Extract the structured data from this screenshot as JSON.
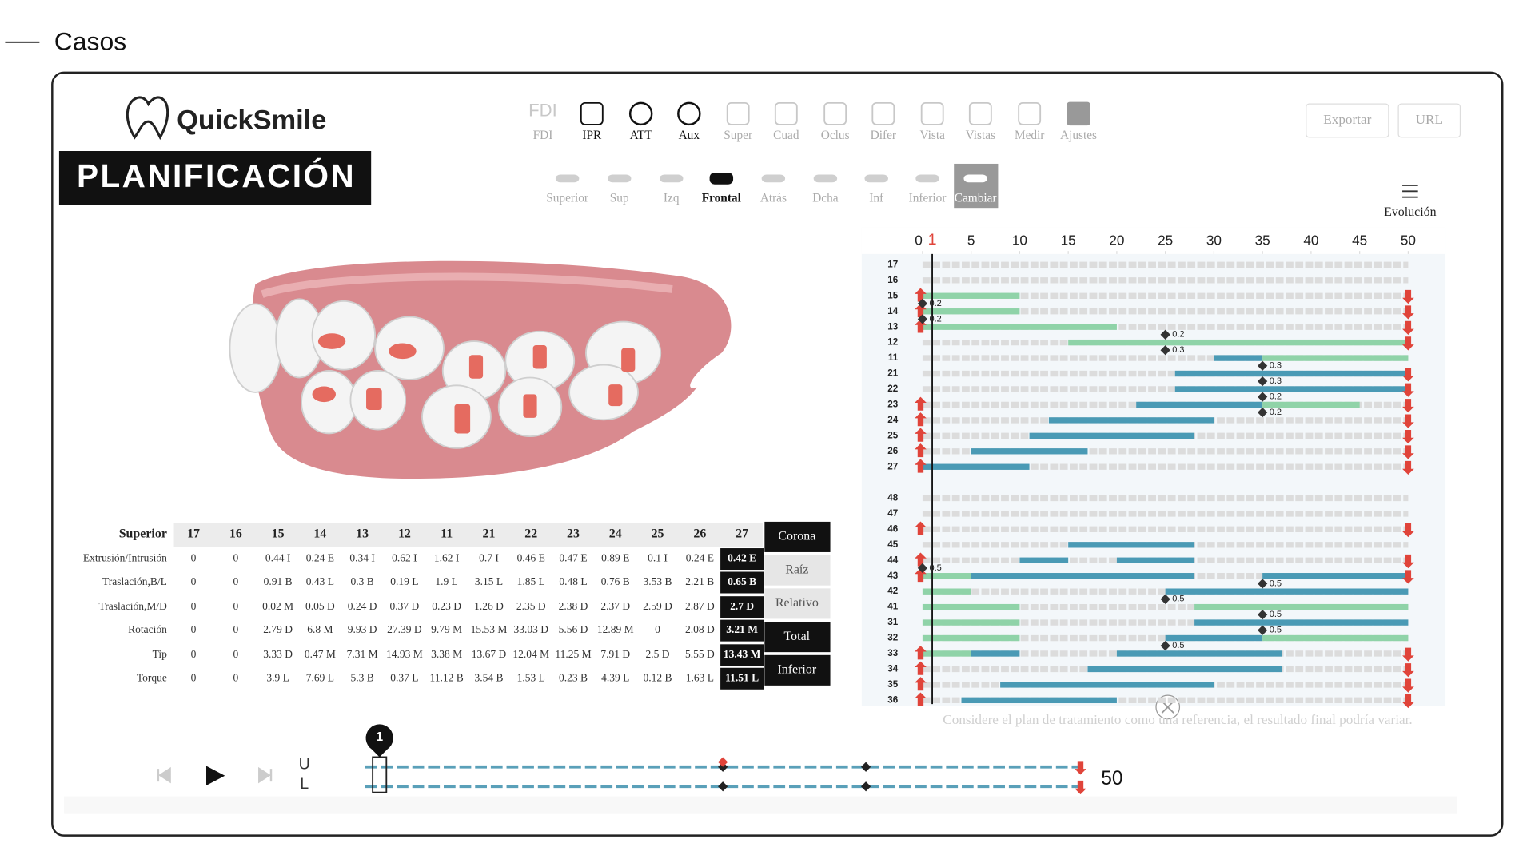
{
  "header": {
    "title": "Casos"
  },
  "app": {
    "logo": "QuickSmile",
    "section": "PLANIFICACIÓN",
    "tools": [
      "FDI",
      "IPR",
      "ATT",
      "Aux",
      "Super",
      "Cuad",
      "Oclus",
      "Difer",
      "Vista",
      "Vistas",
      "Medir",
      "Ajustes"
    ],
    "active_tools": [
      1,
      2,
      3
    ],
    "views": [
      "Superior",
      "Sup",
      "Izq",
      "Frontal",
      "Atrás",
      "Dcha",
      "Inf",
      "Inferior",
      "Cambiar"
    ],
    "active_view": 3,
    "highlight_view": 8,
    "actions": [
      "Exportar",
      "URL"
    ],
    "evolution": "Evolución"
  },
  "table": {
    "corner": "Superior",
    "columns": [
      "17",
      "16",
      "15",
      "14",
      "13",
      "12",
      "11",
      "21",
      "22",
      "23",
      "24",
      "25",
      "26",
      "27"
    ],
    "rows": [
      {
        "label": "Extrusión/Intrusión",
        "cells": [
          "0",
          "0",
          "0.44 I",
          "0.24 E",
          "0.34 I",
          "0.62 I",
          "1.62 I",
          "0.7 I",
          "0.46 E",
          "0.47 E",
          "0.89 E",
          "0.1 I",
          "0.24 E",
          "0.42 E"
        ]
      },
      {
        "label": "Traslación,B/L",
        "cells": [
          "0",
          "0",
          "0.91 B",
          "0.43 L",
          "0.3 B",
          "0.19 L",
          "1.9 L",
          "3.15 L",
          "1.85 L",
          "0.48 L",
          "0.76 B",
          "3.53 B",
          "2.21 B",
          "0.65 B"
        ]
      },
      {
        "label": "Traslación,M/D",
        "cells": [
          "0",
          "0",
          "0.02 M",
          "0.05 D",
          "0.24 D",
          "0.37 D",
          "0.23 D",
          "1.26 D",
          "2.35 D",
          "2.38 D",
          "2.37 D",
          "2.59 D",
          "2.87 D",
          "2.7 D"
        ]
      },
      {
        "label": "Rotación",
        "cells": [
          "0",
          "0",
          "2.79 D",
          "6.8 M",
          "9.93 D",
          "27.39 D",
          "9.79 M",
          "15.53 M",
          "33.03 D",
          "5.56 D",
          "12.89 M",
          "0",
          "2.08 D",
          "3.21 M"
        ]
      },
      {
        "label": "Tip",
        "cells": [
          "0",
          "0",
          "3.33 D",
          "0.47 M",
          "7.31 M",
          "14.93 M",
          "3.38 M",
          "13.67 D",
          "12.04 M",
          "11.25 M",
          "7.91 D",
          "2.5 D",
          "5.55 D",
          "13.43 M"
        ]
      },
      {
        "label": "Torque",
        "cells": [
          "0",
          "0",
          "3.9 L",
          "7.69 L",
          "5.3 B",
          "0.37 L",
          "11.12 B",
          "3.54 B",
          "1.53 L",
          "0.23 B",
          "4.39 L",
          "0.12 B",
          "1.63 L",
          "11.51 L"
        ]
      }
    ],
    "side_buttons": [
      "Corona",
      "Raíz",
      "Relativo",
      "Total",
      "Inferior"
    ],
    "active_buttons": [
      0,
      3,
      4
    ]
  },
  "chart_data": {
    "type": "timeline",
    "xlim": [
      0,
      50
    ],
    "xticks": [
      0,
      5,
      10,
      15,
      20,
      25,
      30,
      35,
      40,
      45,
      50
    ],
    "current_stage": 1,
    "upper_rows": [
      {
        "label": "17",
        "segments": [],
        "start_arrow": false,
        "end_arrow": false
      },
      {
        "label": "16",
        "segments": [],
        "start_arrow": false,
        "end_arrow": false
      },
      {
        "label": "15",
        "segments": [
          {
            "start": 0,
            "end": 10,
            "color": "#8fd3a8"
          }
        ],
        "start_arrow": true,
        "end_arrow": true
      },
      {
        "label": "14",
        "segments": [
          {
            "start": 0,
            "end": 10,
            "color": "#8fd3a8"
          }
        ],
        "start_arrow": true,
        "end_arrow": true
      },
      {
        "label": "13",
        "segments": [
          {
            "start": 0,
            "end": 20,
            "color": "#8fd3a8"
          }
        ],
        "start_arrow": true,
        "end_arrow": true
      },
      {
        "label": "12",
        "segments": [
          {
            "start": 15,
            "end": 50,
            "color": "#8fd3a8"
          }
        ],
        "start_arrow": false,
        "end_arrow": true
      },
      {
        "label": "11",
        "segments": [
          {
            "start": 30,
            "end": 35,
            "color": "#4a9ab5"
          },
          {
            "start": 35,
            "end": 50,
            "color": "#8fd3a8"
          }
        ],
        "start_arrow": false,
        "end_arrow": false
      },
      {
        "label": "21",
        "segments": [
          {
            "start": 26,
            "end": 50,
            "color": "#4a9ab5"
          }
        ],
        "start_arrow": false,
        "end_arrow": true
      },
      {
        "label": "22",
        "segments": [
          {
            "start": 26,
            "end": 50,
            "color": "#4a9ab5"
          }
        ],
        "start_arrow": false,
        "end_arrow": true
      },
      {
        "label": "23",
        "segments": [
          {
            "start": 22,
            "end": 35,
            "color": "#4a9ab5"
          },
          {
            "start": 35,
            "end": 45,
            "color": "#8fd3a8"
          }
        ],
        "start_arrow": true,
        "end_arrow": true
      },
      {
        "label": "24",
        "segments": [
          {
            "start": 13,
            "end": 30,
            "color": "#4a9ab5"
          }
        ],
        "start_arrow": true,
        "end_arrow": true
      },
      {
        "label": "25",
        "segments": [
          {
            "start": 11,
            "end": 28,
            "color": "#4a9ab5"
          }
        ],
        "start_arrow": true,
        "end_arrow": true
      },
      {
        "label": "26",
        "segments": [
          {
            "start": 5,
            "end": 17,
            "color": "#4a9ab5"
          }
        ],
        "start_arrow": true,
        "end_arrow": true
      },
      {
        "label": "27",
        "segments": [
          {
            "start": 0,
            "end": 11,
            "color": "#4a9ab5"
          }
        ],
        "start_arrow": true,
        "end_arrow": true
      }
    ],
    "lower_rows": [
      {
        "label": "48",
        "segments": [],
        "start_arrow": false,
        "end_arrow": false
      },
      {
        "label": "47",
        "segments": [],
        "start_arrow": false,
        "end_arrow": false
      },
      {
        "label": "46",
        "segments": [],
        "start_arrow": true,
        "end_arrow": true
      },
      {
        "label": "45",
        "segments": [
          {
            "start": 15,
            "end": 28,
            "color": "#4a9ab5"
          }
        ],
        "start_arrow": false,
        "end_arrow": false
      },
      {
        "label": "44",
        "segments": [
          {
            "start": 10,
            "end": 15,
            "color": "#4a9ab5"
          },
          {
            "start": 20,
            "end": 28,
            "color": "#4a9ab5"
          }
        ],
        "start_arrow": true,
        "end_arrow": true
      },
      {
        "label": "43",
        "segments": [
          {
            "start": 0,
            "end": 5,
            "color": "#8fd3a8"
          },
          {
            "start": 5,
            "end": 28,
            "color": "#4a9ab5"
          },
          {
            "start": 35,
            "end": 50,
            "color": "#4a9ab5"
          }
        ],
        "start_arrow": true,
        "end_arrow": true
      },
      {
        "label": "42",
        "segments": [
          {
            "start": 0,
            "end": 5,
            "color": "#8fd3a8"
          },
          {
            "start": 25,
            "end": 50,
            "color": "#4a9ab5"
          }
        ],
        "start_arrow": false,
        "end_arrow": false
      },
      {
        "label": "41",
        "segments": [
          {
            "start": 0,
            "end": 10,
            "color": "#8fd3a8"
          },
          {
            "start": 28,
            "end": 50,
            "color": "#8fd3a8"
          }
        ],
        "start_arrow": false,
        "end_arrow": false
      },
      {
        "label": "31",
        "segments": [
          {
            "start": 0,
            "end": 10,
            "color": "#8fd3a8"
          },
          {
            "start": 28,
            "end": 50,
            "color": "#4a9ab5"
          }
        ],
        "start_arrow": false,
        "end_arrow": false
      },
      {
        "label": "32",
        "segments": [
          {
            "start": 0,
            "end": 10,
            "color": "#8fd3a8"
          },
          {
            "start": 25,
            "end": 35,
            "color": "#4a9ab5"
          },
          {
            "start": 35,
            "end": 50,
            "color": "#8fd3a8"
          }
        ],
        "start_arrow": false,
        "end_arrow": false
      },
      {
        "label": "33",
        "segments": [
          {
            "start": 0,
            "end": 5,
            "color": "#8fd3a8"
          },
          {
            "start": 5,
            "end": 10,
            "color": "#4a9ab5"
          },
          {
            "start": 20,
            "end": 37,
            "color": "#4a9ab5"
          }
        ],
        "start_arrow": true,
        "end_arrow": true
      },
      {
        "label": "34",
        "segments": [
          {
            "start": 17,
            "end": 37,
            "color": "#4a9ab5"
          }
        ],
        "start_arrow": true,
        "end_arrow": true
      },
      {
        "label": "35",
        "segments": [
          {
            "start": 8,
            "end": 30,
            "color": "#4a9ab5"
          }
        ],
        "start_arrow": true,
        "end_arrow": true
      },
      {
        "label": "36",
        "segments": [
          {
            "start": 4,
            "end": 20,
            "color": "#4a9ab5"
          }
        ],
        "start_arrow": true,
        "end_arrow": true
      }
    ],
    "markers": [
      {
        "row": "14",
        "stage": 0,
        "label": "0.2"
      },
      {
        "row": "13",
        "stage": 0,
        "label": "0.2"
      },
      {
        "row": "12",
        "stage": 25,
        "label": "0.2"
      },
      {
        "row": "11",
        "stage": 25,
        "label": "0.3"
      },
      {
        "row": "21",
        "stage": 35,
        "label": "0.3"
      },
      {
        "row": "22",
        "stage": 35,
        "label": "0.3"
      },
      {
        "row": "23",
        "stage": 35,
        "label": "0.2"
      },
      {
        "row": "24",
        "stage": 35,
        "label": "0.2"
      },
      {
        "row": "43",
        "stage": 0,
        "label": "0.5"
      },
      {
        "row": "42",
        "stage": 35,
        "label": "0.5"
      },
      {
        "row": "41",
        "stage": 25,
        "label": "0.5"
      },
      {
        "row": "31",
        "stage": 35,
        "label": "0.5"
      },
      {
        "row": "32",
        "stage": 35,
        "label": "0.5"
      },
      {
        "row": "33",
        "stage": 25,
        "label": "0.5"
      }
    ],
    "note": "Considere el plan de tratamiento como una referencia, el resultado final podría variar."
  },
  "player": {
    "arches": [
      "U",
      "L"
    ],
    "current": 1,
    "total": 50,
    "markers": [
      25,
      35
    ]
  }
}
